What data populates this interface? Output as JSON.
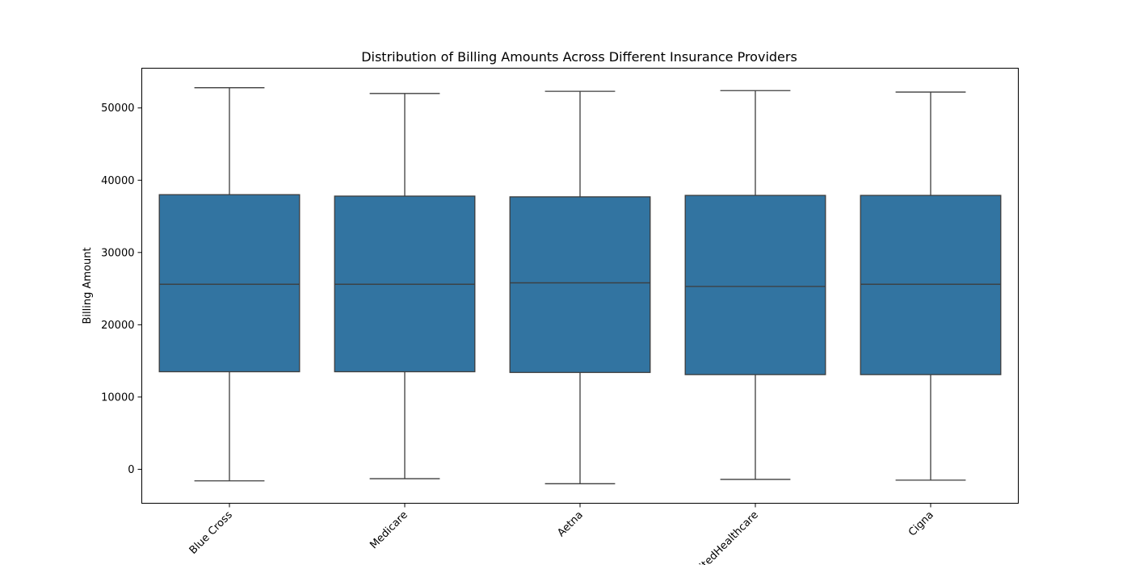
{
  "chart_data": {
    "type": "box",
    "title": "Distribution of Billing Amounts Across Different Insurance Providers",
    "xlabel": "",
    "ylabel": "Billing Amount",
    "ylim": [
      -4700,
      55500
    ],
    "yticks": [
      0,
      10000,
      20000,
      30000,
      40000,
      50000
    ],
    "categories": [
      "Blue Cross",
      "Medicare",
      "Aetna",
      "UnitedHealthcare",
      "Cigna"
    ],
    "boxes": [
      {
        "whisker_low": -1600,
        "q1": 13500,
        "median": 25600,
        "q3": 38000,
        "whisker_high": 52800
      },
      {
        "whisker_low": -1300,
        "q1": 13500,
        "median": 25600,
        "q3": 37800,
        "whisker_high": 52000
      },
      {
        "whisker_low": -2000,
        "q1": 13400,
        "median": 25800,
        "q3": 37700,
        "whisker_high": 52300
      },
      {
        "whisker_low": -1400,
        "q1": 13100,
        "median": 25300,
        "q3": 37900,
        "whisker_high": 52400
      },
      {
        "whisker_low": -1500,
        "q1": 13100,
        "median": 25600,
        "q3": 37900,
        "whisker_high": 52200
      }
    ],
    "box_color": "#3274a1",
    "line_color": "#3d3d3d",
    "grid": false,
    "legend": "none"
  }
}
